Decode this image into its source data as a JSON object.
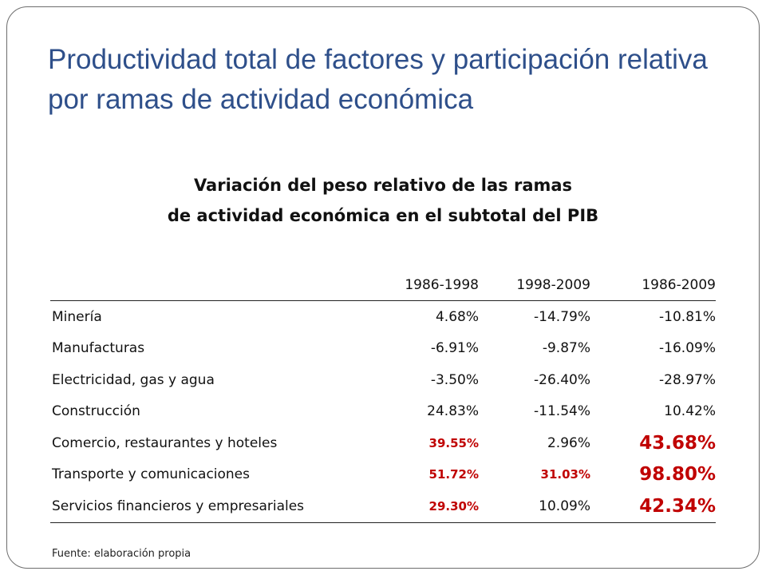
{
  "title": "Productividad total de factores y participación relativa por ramas de actividad económica",
  "subtitle": {
    "line1": "Variación del peso relativo de las ramas",
    "line2": "de actividad económica en el subtotal del PIB"
  },
  "table": {
    "columns": [
      "",
      "1986-1998",
      "1998-2009",
      "1986-2009"
    ],
    "rows": [
      {
        "branch": "Minería",
        "v1": "4.68%",
        "v2": "-14.79%",
        "v3": "-10.81%"
      },
      {
        "branch": "Manufacturas",
        "v1": "-6.91%",
        "v2": "-9.87%",
        "v3": "-16.09%"
      },
      {
        "branch": "Electricidad, gas y agua",
        "v1": "-3.50%",
        "v2": "-26.40%",
        "v3": "-28.97%"
      },
      {
        "branch": "Construcción",
        "v1": "24.83%",
        "v2": "-11.54%",
        "v3": "10.42%"
      },
      {
        "branch": "Comercio, restaurantes y hoteles",
        "v1": "39.55%",
        "v2": "2.96%",
        "v3": "43.68%"
      },
      {
        "branch": "Transporte y comunicaciones",
        "v1": "51.72%",
        "v2": "31.03%",
        "v3": "98.80%"
      },
      {
        "branch": "Servicios financieros y empresariales",
        "v1": "29.30%",
        "v2": "10.09%",
        "v3": "42.34%"
      }
    ]
  },
  "source": "Fuente: elaboración propia",
  "colors": {
    "title": "#2e4f8a",
    "highlight": "#c00000",
    "text": "#111111"
  }
}
